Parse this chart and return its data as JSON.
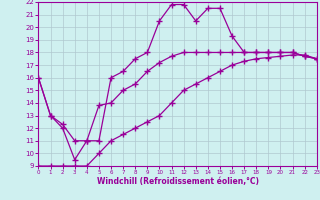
{
  "xlabel": "Windchill (Refroidissement éolien,°C)",
  "bg_color": "#cff0f0",
  "line_color": "#990099",
  "grid_color": "#b0c8d0",
  "xlim": [
    0,
    23
  ],
  "ylim": [
    9,
    22
  ],
  "xticks": [
    0,
    1,
    2,
    3,
    4,
    5,
    6,
    7,
    8,
    9,
    10,
    11,
    12,
    13,
    14,
    15,
    16,
    17,
    18,
    19,
    20,
    21,
    22,
    23
  ],
  "yticks": [
    9,
    10,
    11,
    12,
    13,
    14,
    15,
    16,
    17,
    18,
    19,
    20,
    21,
    22
  ],
  "line1_x": [
    0,
    1,
    2,
    3,
    4,
    5,
    6,
    7,
    8,
    9,
    10,
    11,
    12,
    13,
    14,
    15,
    16,
    17,
    18,
    19,
    20,
    21,
    22,
    23
  ],
  "line1_y": [
    16,
    13,
    12,
    9.5,
    11,
    11,
    16,
    16.5,
    17.5,
    18,
    20.5,
    21.8,
    21.8,
    20.5,
    21.5,
    21.5,
    19.3,
    18,
    18,
    18,
    18,
    18,
    17.7,
    17.5
  ],
  "line2_x": [
    0,
    1,
    2,
    3,
    4,
    5,
    6,
    7,
    8,
    9,
    10,
    11,
    12,
    13,
    14,
    15,
    16,
    17,
    18,
    19,
    20,
    21,
    22,
    23
  ],
  "line2_y": [
    16,
    13,
    12.3,
    11,
    11,
    13.8,
    14,
    15,
    15.5,
    16.5,
    17.2,
    17.7,
    18,
    18,
    18,
    18,
    18,
    18,
    18,
    18,
    18,
    18,
    17.7,
    17.5
  ],
  "line3_x": [
    0,
    1,
    2,
    3,
    4,
    5,
    6,
    7,
    8,
    9,
    10,
    11,
    12,
    13,
    14,
    15,
    16,
    17,
    18,
    19,
    20,
    21,
    22,
    23
  ],
  "line3_y": [
    9,
    9,
    9,
    9,
    9,
    10,
    11,
    11.5,
    12,
    12.5,
    13,
    14,
    15,
    15.5,
    16,
    16.5,
    17,
    17.3,
    17.5,
    17.6,
    17.7,
    17.8,
    17.8,
    17.5
  ]
}
